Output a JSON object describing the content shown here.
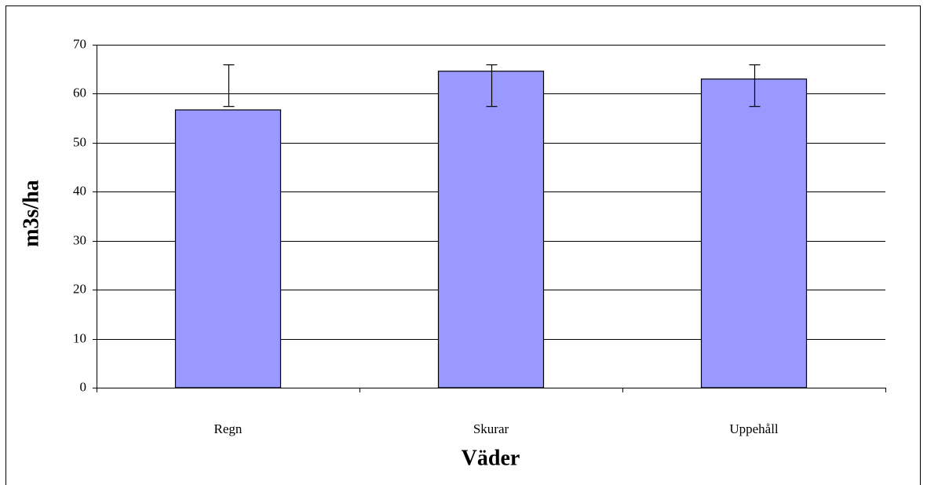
{
  "chart_data": {
    "type": "bar",
    "categories": [
      "Regn",
      "Skurar",
      "Uppehåll"
    ],
    "values": [
      56.7,
      64.6,
      63
    ],
    "error_low": [
      57.4,
      57.4,
      57.4
    ],
    "error_high": [
      65.9,
      65.9,
      65.9
    ],
    "color": "#9999ff",
    "xlabel": "Väder",
    "ylabel": "m3s/ha",
    "ylim": [
      0,
      70
    ],
    "yticks": [
      0,
      10,
      20,
      30,
      40,
      50,
      60,
      70
    ],
    "grid": true
  }
}
